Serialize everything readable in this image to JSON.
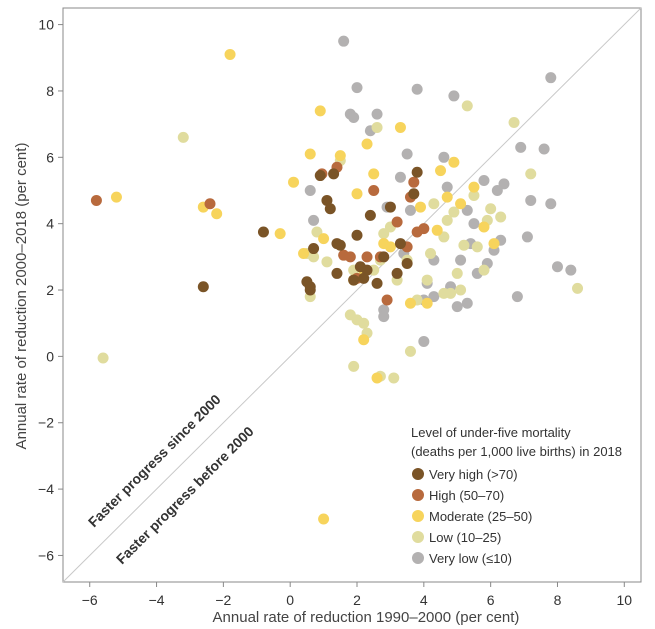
{
  "chart_data": {
    "type": "scatter",
    "title": "",
    "xlabel": "Annual rate of reduction 1990–2000 (per cent)",
    "ylabel": "Annual rate of reduction 2000–2018 (per cent)",
    "xlim": [
      -6.8,
      10.5
    ],
    "ylim": [
      -6.8,
      10.5
    ],
    "xticks": [
      -6,
      -4,
      -2,
      0,
      2,
      4,
      6,
      8,
      10
    ],
    "yticks": [
      -6,
      -4,
      -2,
      0,
      2,
      4,
      6,
      8,
      10
    ],
    "grid": false,
    "diagonal_line": true,
    "annotations": [
      "Faster progress since 2000",
      "Faster progress before 2000"
    ],
    "legend": {
      "title_line1": "Level of under-five mortality",
      "title_line2": "(deaths per 1,000 live births) in 2018",
      "placement": "bottom-right"
    },
    "series": [
      {
        "name": "Very high (>70)",
        "color": "#7a5427",
        "points": [
          [
            -2.6,
            2.1
          ],
          [
            -0.8,
            3.75
          ],
          [
            0.5,
            2.25
          ],
          [
            0.6,
            2.0
          ],
          [
            0.7,
            3.25
          ],
          [
            0.9,
            5.45
          ],
          [
            1.1,
            4.7
          ],
          [
            1.2,
            4.45
          ],
          [
            1.3,
            5.5
          ],
          [
            1.4,
            2.5
          ],
          [
            1.4,
            3.4
          ],
          [
            1.5,
            3.35
          ],
          [
            1.9,
            2.3
          ],
          [
            2.0,
            3.65
          ],
          [
            2.1,
            2.7
          ],
          [
            2.2,
            2.35
          ],
          [
            2.4,
            4.25
          ],
          [
            2.6,
            2.2
          ],
          [
            2.8,
            3.0
          ],
          [
            3.0,
            4.5
          ],
          [
            3.2,
            2.5
          ],
          [
            3.3,
            3.4
          ],
          [
            3.5,
            2.8
          ],
          [
            3.7,
            4.9
          ],
          [
            3.8,
            5.55
          ],
          [
            2.3,
            2.6
          ],
          [
            0.6,
            2.1
          ]
        ]
      },
      {
        "name": "High (50–70)",
        "color": "#b86a3d",
        "points": [
          [
            -5.8,
            4.7
          ],
          [
            -2.4,
            4.6
          ],
          [
            0.95,
            5.5
          ],
          [
            1.4,
            5.7
          ],
          [
            1.6,
            3.05
          ],
          [
            1.8,
            3.0
          ],
          [
            2.0,
            2.35
          ],
          [
            2.3,
            3.0
          ],
          [
            2.5,
            5.0
          ],
          [
            2.7,
            3.0
          ],
          [
            2.9,
            1.7
          ],
          [
            3.2,
            4.05
          ],
          [
            3.5,
            3.3
          ],
          [
            3.6,
            4.8
          ],
          [
            3.7,
            5.25
          ],
          [
            3.8,
            3.75
          ],
          [
            4.0,
            3.85
          ]
        ]
      },
      {
        "name": "Moderate (25–50)",
        "color": "#f7d45c",
        "points": [
          [
            -5.2,
            4.8
          ],
          [
            -2.6,
            4.5
          ],
          [
            -2.2,
            4.3
          ],
          [
            -1.8,
            9.1
          ],
          [
            -0.3,
            3.7
          ],
          [
            0.1,
            5.25
          ],
          [
            0.4,
            3.1
          ],
          [
            0.6,
            6.1
          ],
          [
            0.9,
            7.4
          ],
          [
            1.0,
            3.55
          ],
          [
            1.5,
            6.05
          ],
          [
            1.9,
            2.3
          ],
          [
            2.0,
            4.9
          ],
          [
            2.2,
            0.5
          ],
          [
            2.3,
            6.4
          ],
          [
            2.5,
            5.5
          ],
          [
            2.8,
            3.4
          ],
          [
            3.0,
            3.3
          ],
          [
            3.3,
            6.9
          ],
          [
            3.6,
            1.6
          ],
          [
            3.9,
            4.5
          ],
          [
            4.1,
            1.6
          ],
          [
            4.4,
            3.8
          ],
          [
            4.5,
            5.6
          ],
          [
            4.7,
            4.8
          ],
          [
            4.9,
            5.85
          ],
          [
            5.1,
            4.6
          ],
          [
            5.5,
            5.1
          ],
          [
            5.8,
            3.9
          ],
          [
            6.1,
            3.4
          ],
          [
            1.0,
            -4.9
          ],
          [
            2.6,
            -0.65
          ],
          [
            2.2,
            2.6
          ]
        ]
      },
      {
        "name": "Low (10–25)",
        "color": "#e0dc9e",
        "points": [
          [
            -5.6,
            -0.05
          ],
          [
            -3.2,
            6.6
          ],
          [
            0.5,
            3.1
          ],
          [
            0.6,
            1.8
          ],
          [
            0.7,
            3.0
          ],
          [
            0.8,
            3.75
          ],
          [
            1.1,
            2.85
          ],
          [
            1.5,
            5.9
          ],
          [
            1.8,
            1.25
          ],
          [
            1.9,
            2.6
          ],
          [
            1.9,
            -0.3
          ],
          [
            2.0,
            1.1
          ],
          [
            2.2,
            1.0
          ],
          [
            2.3,
            0.7
          ],
          [
            2.5,
            2.6
          ],
          [
            2.6,
            6.9
          ],
          [
            2.7,
            2.9
          ],
          [
            2.8,
            3.7
          ],
          [
            2.7,
            -0.6
          ],
          [
            3.0,
            3.9
          ],
          [
            3.1,
            -0.65
          ],
          [
            3.2,
            2.3
          ],
          [
            3.5,
            2.9
          ],
          [
            3.6,
            0.15
          ],
          [
            3.8,
            1.7
          ],
          [
            4.1,
            2.3
          ],
          [
            4.2,
            3.1
          ],
          [
            4.3,
            4.6
          ],
          [
            4.6,
            3.6
          ],
          [
            4.7,
            4.1
          ],
          [
            4.9,
            4.35
          ],
          [
            5.0,
            2.5
          ],
          [
            5.1,
            2.0
          ],
          [
            5.3,
            7.55
          ],
          [
            5.5,
            4.85
          ],
          [
            5.6,
            3.3
          ],
          [
            5.8,
            2.6
          ],
          [
            5.9,
            4.1
          ],
          [
            6.0,
            4.45
          ],
          [
            6.3,
            4.2
          ],
          [
            6.7,
            7.05
          ],
          [
            7.2,
            5.5
          ],
          [
            8.6,
            2.05
          ],
          [
            4.6,
            1.9
          ],
          [
            4.8,
            1.9
          ],
          [
            5.2,
            3.35
          ]
        ]
      },
      {
        "name": "Very low (≤10)",
        "color": "#b3b1b1",
        "points": [
          [
            0.6,
            5.0
          ],
          [
            0.7,
            4.1
          ],
          [
            1.6,
            9.5
          ],
          [
            1.8,
            7.3
          ],
          [
            1.9,
            7.2
          ],
          [
            2.0,
            8.1
          ],
          [
            2.4,
            6.8
          ],
          [
            2.6,
            7.3
          ],
          [
            2.8,
            1.4
          ],
          [
            2.9,
            4.5
          ],
          [
            2.8,
            1.2
          ],
          [
            3.3,
            5.4
          ],
          [
            3.5,
            6.1
          ],
          [
            3.6,
            4.4
          ],
          [
            3.8,
            8.05
          ],
          [
            4.0,
            1.7
          ],
          [
            4.1,
            2.2
          ],
          [
            4.3,
            1.8
          ],
          [
            4.0,
            0.45
          ],
          [
            4.3,
            2.9
          ],
          [
            4.6,
            6.0
          ],
          [
            4.7,
            5.1
          ],
          [
            4.8,
            2.1
          ],
          [
            4.9,
            7.85
          ],
          [
            5.0,
            1.5
          ],
          [
            5.1,
            2.9
          ],
          [
            5.3,
            1.6
          ],
          [
            5.3,
            4.4
          ],
          [
            5.4,
            3.4
          ],
          [
            5.5,
            4.0
          ],
          [
            5.6,
            2.5
          ],
          [
            5.8,
            5.3
          ],
          [
            5.9,
            2.8
          ],
          [
            6.1,
            3.2
          ],
          [
            6.2,
            5.0
          ],
          [
            6.3,
            3.5
          ],
          [
            6.4,
            5.2
          ],
          [
            6.8,
            1.8
          ],
          [
            6.9,
            6.3
          ],
          [
            7.1,
            3.6
          ],
          [
            7.2,
            4.7
          ],
          [
            7.6,
            6.25
          ],
          [
            7.8,
            4.6
          ],
          [
            7.8,
            8.4
          ],
          [
            8.0,
            2.7
          ],
          [
            8.4,
            2.6
          ],
          [
            3.4,
            3.1
          ]
        ]
      }
    ]
  }
}
